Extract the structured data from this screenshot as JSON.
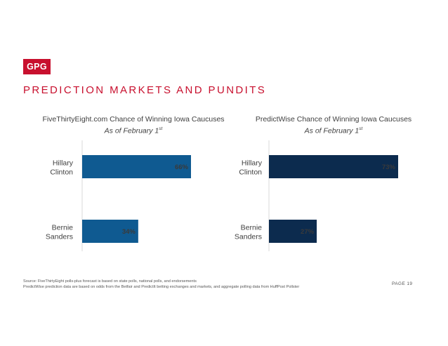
{
  "logo": {
    "text": "GPG"
  },
  "section_title": "PREDICTION MARKETS AND PUNDITS",
  "charts": [
    {
      "title": "FiveThirtyEight.com Chance of Winning Iowa Caucuses",
      "subtitle": "As of February 1",
      "subtitle_sup": "st"
    },
    {
      "title": "PredictWise Chance of Winning Iowa Caucuses",
      "subtitle": "As of February 1",
      "subtitle_sup": "st"
    }
  ],
  "chart_data": [
    {
      "type": "bar",
      "orientation": "horizontal",
      "title": "FiveThirtyEight.com Chance of Winning Iowa Caucuses",
      "subtitle": "As of February 1st",
      "categories": [
        "Hillary Clinton",
        "Bernie Sanders"
      ],
      "category_lines": [
        [
          "Hillary",
          "Clinton"
        ],
        [
          "Bernie",
          "Sanders"
        ]
      ],
      "values": [
        66,
        34
      ],
      "labels": [
        "66%",
        "34%"
      ],
      "xlim": [
        0,
        66
      ],
      "color": "#0f5a91"
    },
    {
      "type": "bar",
      "orientation": "horizontal",
      "title": "PredictWise Chance of Winning Iowa Caucuses",
      "subtitle": "As of February 1st",
      "categories": [
        "Hillary Clinton",
        "Bernie Sanders"
      ],
      "category_lines": [
        [
          "Hillary",
          "Clinton"
        ],
        [
          "Bernie",
          "Sanders"
        ]
      ],
      "values": [
        73,
        27
      ],
      "labels": [
        "73%",
        "27%"
      ],
      "xlim": [
        0,
        73
      ],
      "color": "#0c2b4e"
    }
  ],
  "footer": {
    "source_line1": "Source: FiveThirtyEight polls-plus forecast is based on state polls, national polls, and endorsements",
    "source_line2": "PredictWise prediction data are based on odds from the Betfair and PredictIt betting exchanges and markets, and aggregate polling data from HuffPost Pollster",
    "page": "PAGE 19"
  },
  "colors": {
    "brand_red": "#c8102e",
    "text": "#404040",
    "axis": "#d9d9d9"
  }
}
